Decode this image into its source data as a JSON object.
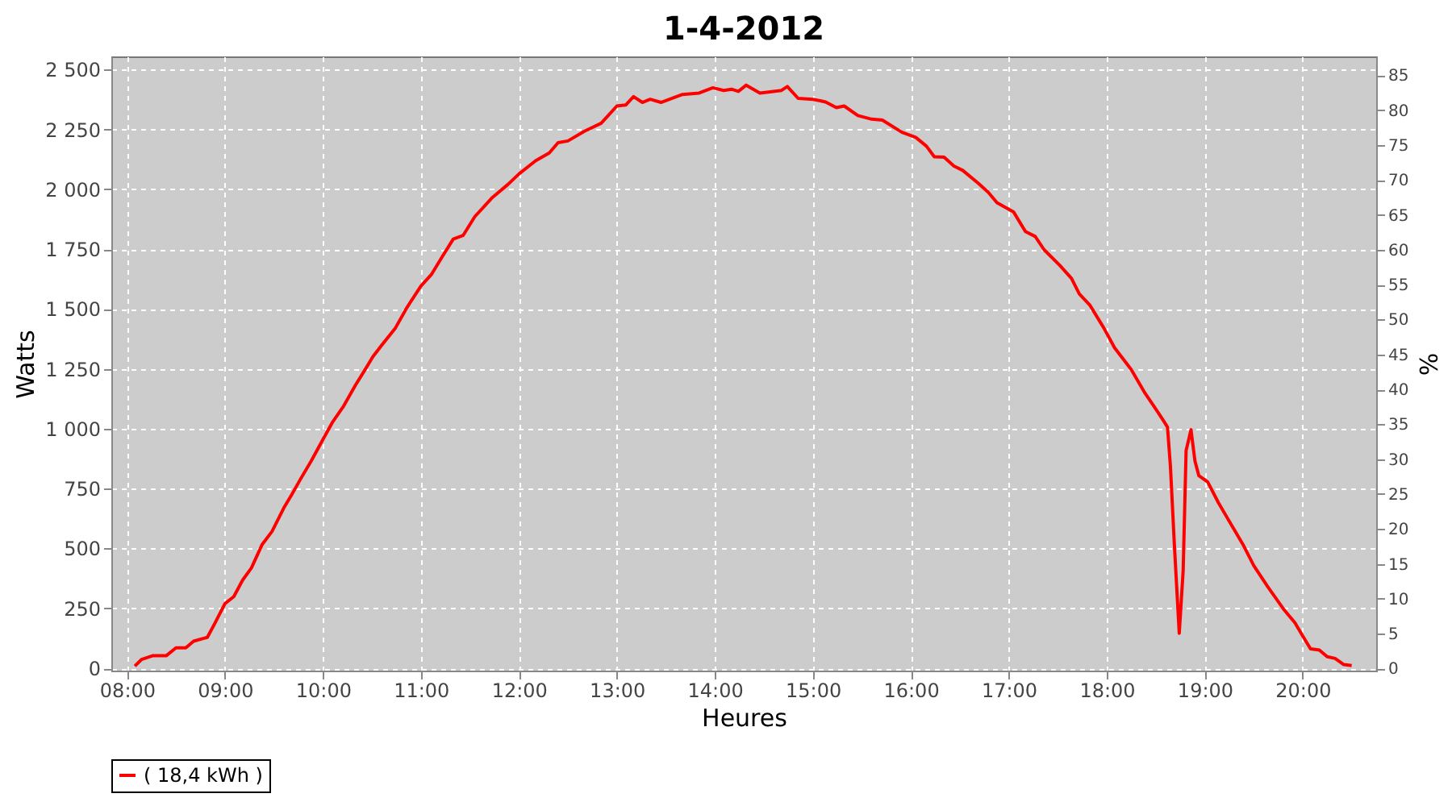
{
  "chart_data": {
    "type": "line",
    "title": "1-4-2012",
    "xlabel": "Heures",
    "ylabel": "Watts",
    "y2label": "%",
    "xlim": [
      7.84,
      20.75
    ],
    "ylim": [
      -10,
      2555
    ],
    "y2lim": [
      -0.3,
      87.7
    ],
    "xticks": [
      {
        "value": 8,
        "label": "08:00"
      },
      {
        "value": 9,
        "label": "09:00"
      },
      {
        "value": 10,
        "label": "10:00"
      },
      {
        "value": 11,
        "label": "11:00"
      },
      {
        "value": 12,
        "label": "12:00"
      },
      {
        "value": 13,
        "label": "13:00"
      },
      {
        "value": 14,
        "label": "14:00"
      },
      {
        "value": 15,
        "label": "15:00"
      },
      {
        "value": 16,
        "label": "16:00"
      },
      {
        "value": 17,
        "label": "17:00"
      },
      {
        "value": 18,
        "label": "18:00"
      },
      {
        "value": 19,
        "label": "19:00"
      },
      {
        "value": 20,
        "label": "20:00"
      }
    ],
    "yticks": [
      0,
      250,
      500,
      750,
      {
        "value": 1000,
        "label": "1 000"
      },
      {
        "value": 1250,
        "label": "1 250"
      },
      {
        "value": 1500,
        "label": "1 500"
      },
      {
        "value": 1750,
        "label": "1 750"
      },
      {
        "value": 2000,
        "label": "2 000"
      },
      {
        "value": 2250,
        "label": "2 250"
      },
      {
        "value": 2500,
        "label": "2 500"
      }
    ],
    "y2ticks": [
      0,
      5,
      10,
      15,
      20,
      25,
      30,
      35,
      40,
      45,
      50,
      55,
      60,
      65,
      70,
      75,
      80,
      85
    ],
    "grid": true,
    "legend": "bottom",
    "marker": "none",
    "line_style": "solid",
    "series": [
      {
        "name": "( 18,4 kWh )",
        "color": "#ff0000",
        "x": [
          8.08,
          8.15,
          8.26,
          8.4,
          8.5,
          8.6,
          8.68,
          8.82,
          8.9,
          9.0,
          9.09,
          9.18,
          9.27,
          9.38,
          9.48,
          9.6,
          9.68,
          9.77,
          9.88,
          10.01,
          10.1,
          10.21,
          10.33,
          10.43,
          10.51,
          10.6,
          10.74,
          10.86,
          11.0,
          11.11,
          11.22,
          11.33,
          11.43,
          11.55,
          11.73,
          11.89,
          12.0,
          12.17,
          12.31,
          12.4,
          12.5,
          12.67,
          12.84,
          13.0,
          13.09,
          13.17,
          13.26,
          13.34,
          13.45,
          13.67,
          13.84,
          13.98,
          14.09,
          14.17,
          14.24,
          14.32,
          14.46,
          14.68,
          14.74,
          14.85,
          15.0,
          15.13,
          15.24,
          15.32,
          15.46,
          15.6,
          15.71,
          15.91,
          16.05,
          16.16,
          16.24,
          16.34,
          16.44,
          16.53,
          16.69,
          16.79,
          16.88,
          17.05,
          17.17,
          17.27,
          17.36,
          17.52,
          17.64,
          17.72,
          17.83,
          17.97,
          18.08,
          18.25,
          18.39,
          18.5,
          18.58,
          18.62,
          18.65,
          18.69,
          18.74,
          18.78,
          18.81,
          18.86,
          18.9,
          18.94,
          19.03,
          19.14,
          19.28,
          19.39,
          19.5,
          19.64,
          19.81,
          19.92,
          20.0,
          20.08,
          20.17,
          20.25,
          20.33,
          20.42,
          20.5
        ],
        "values": [
          9,
          37,
          52,
          52,
          85,
          85,
          113,
          129,
          190,
          270,
          299,
          368,
          419,
          517,
          571,
          669,
          724,
          789,
          865,
          963,
          1029,
          1094,
          1181,
          1247,
          1301,
          1349,
          1421,
          1508,
          1596,
          1646,
          1720,
          1792,
          1807,
          1886,
          1966,
          2021,
          2064,
          2119,
          2152,
          2195,
          2202,
          2243,
          2276,
          2348,
          2352,
          2387,
          2363,
          2376,
          2363,
          2396,
          2402,
          2424,
          2413,
          2418,
          2409,
          2435,
          2402,
          2413,
          2429,
          2380,
          2376,
          2365,
          2341,
          2348,
          2308,
          2293,
          2289,
          2238,
          2217,
          2180,
          2136,
          2134,
          2097,
          2079,
          2025,
          1988,
          1944,
          1905,
          1824,
          1803,
          1748,
          1683,
          1628,
          1563,
          1515,
          1421,
          1338,
          1247,
          1149,
          1083,
          1033,
          1007,
          844,
          517,
          146,
          408,
          909,
          996,
          866,
          804,
          778,
          691,
          593,
          517,
          429,
          342,
          244,
          190,
          135,
          81,
          76,
          48,
          41,
          15,
          11
        ]
      }
    ]
  }
}
